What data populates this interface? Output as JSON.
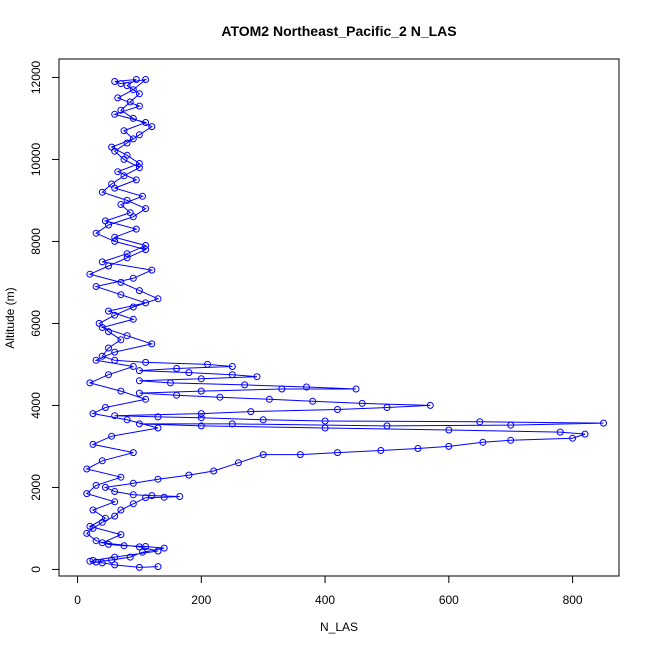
{
  "chart_data": {
    "type": "scatter",
    "title": "ATOM2 Northeast_Pacific_2 N_LAS",
    "xlabel": "N_LAS",
    "ylabel": "Altitude (m)",
    "xlim": [
      -30,
      875
    ],
    "ylim": [
      -160,
      12450
    ],
    "x_ticks": [
      0,
      200,
      400,
      600,
      800
    ],
    "y_ticks": [
      0,
      2000,
      4000,
      6000,
      8000,
      10000,
      12000
    ],
    "grid": false,
    "legend": "none",
    "marker": "open-circle",
    "connected_by_lines": true,
    "colors": {
      "series": "#0000ff",
      "axis": "#000000",
      "background": "#ffffff"
    },
    "series": [
      {
        "points": [
          [
            130,
            70
          ],
          [
            100,
            50
          ],
          [
            60,
            110
          ],
          [
            40,
            160
          ],
          [
            20,
            200
          ],
          [
            30,
            180
          ],
          [
            55,
            230
          ],
          [
            85,
            300
          ],
          [
            105,
            420
          ],
          [
            140,
            520
          ],
          [
            110,
            560
          ],
          [
            75,
            580
          ],
          [
            50,
            610
          ],
          [
            30,
            700
          ],
          [
            15,
            880
          ],
          [
            25,
            1000
          ],
          [
            40,
            1150
          ],
          [
            60,
            1300
          ],
          [
            70,
            1450
          ],
          [
            90,
            1600
          ],
          [
            110,
            1750
          ],
          [
            140,
            1760
          ],
          [
            165,
            1780
          ],
          [
            120,
            1800
          ],
          [
            90,
            1820
          ],
          [
            60,
            1900
          ],
          [
            45,
            2000
          ],
          [
            90,
            2100
          ],
          [
            130,
            2200
          ],
          [
            180,
            2300
          ],
          [
            220,
            2400
          ],
          [
            260,
            2600
          ],
          [
            300,
            2800
          ],
          [
            360,
            2800
          ],
          [
            420,
            2850
          ],
          [
            490,
            2900
          ],
          [
            550,
            2950
          ],
          [
            600,
            3000
          ],
          [
            655,
            3100
          ],
          [
            700,
            3150
          ],
          [
            800,
            3200
          ],
          [
            820,
            3300
          ],
          [
            780,
            3350
          ],
          [
            600,
            3400
          ],
          [
            400,
            3450
          ],
          [
            200,
            3500
          ],
          [
            100,
            3550
          ],
          [
            250,
            3550
          ],
          [
            500,
            3500
          ],
          [
            700,
            3520
          ],
          [
            850,
            3570
          ],
          [
            650,
            3600
          ],
          [
            400,
            3620
          ],
          [
            300,
            3650
          ],
          [
            200,
            3700
          ],
          [
            130,
            3720
          ],
          [
            60,
            3750
          ],
          [
            200,
            3800
          ],
          [
            280,
            3850
          ],
          [
            420,
            3900
          ],
          [
            500,
            3950
          ],
          [
            570,
            4000
          ],
          [
            460,
            4050
          ],
          [
            380,
            4100
          ],
          [
            310,
            4150
          ],
          [
            230,
            4200
          ],
          [
            160,
            4250
          ],
          [
            100,
            4300
          ],
          [
            200,
            4350
          ],
          [
            330,
            4400
          ],
          [
            450,
            4400
          ],
          [
            370,
            4450
          ],
          [
            270,
            4500
          ],
          [
            150,
            4550
          ],
          [
            100,
            4600
          ],
          [
            200,
            4650
          ],
          [
            290,
            4700
          ],
          [
            250,
            4750
          ],
          [
            180,
            4800
          ],
          [
            100,
            4850
          ],
          [
            160,
            4900
          ],
          [
            250,
            4950
          ],
          [
            210,
            5000
          ],
          [
            110,
            5050
          ],
          [
            60,
            5100
          ],
          [
            40,
            5200
          ],
          [
            50,
            5400
          ],
          [
            70,
            5600
          ],
          [
            50,
            5800
          ],
          [
            35,
            6000
          ],
          [
            60,
            6200
          ],
          [
            90,
            6400
          ],
          [
            130,
            6600
          ],
          [
            100,
            6800
          ],
          [
            70,
            7000
          ],
          [
            20,
            7200
          ],
          [
            50,
            7400
          ],
          [
            80,
            7600
          ],
          [
            110,
            7800
          ],
          [
            60,
            8000
          ],
          [
            30,
            8200
          ],
          [
            50,
            8400
          ],
          [
            90,
            8600
          ],
          [
            110,
            8800
          ],
          [
            80,
            9000
          ],
          [
            40,
            9200
          ],
          [
            55,
            9400
          ],
          [
            75,
            9600
          ],
          [
            100,
            9800
          ],
          [
            75,
            10000
          ],
          [
            60,
            10200
          ],
          [
            80,
            10400
          ],
          [
            100,
            10600
          ],
          [
            120,
            10800
          ],
          [
            90,
            11000
          ],
          [
            70,
            11200
          ],
          [
            85,
            11400
          ],
          [
            100,
            11600
          ],
          [
            80,
            11800
          ],
          [
            95,
            11950
          ],
          [
            60,
            11900
          ],
          [
            70,
            11850
          ],
          [
            110,
            11950
          ],
          [
            90,
            11700
          ],
          [
            65,
            11500
          ],
          [
            100,
            11300
          ],
          [
            60,
            11100
          ],
          [
            110,
            10900
          ],
          [
            75,
            10700
          ],
          [
            90,
            10500
          ],
          [
            55,
            10300
          ],
          [
            80,
            10100
          ],
          [
            100,
            9900
          ],
          [
            65,
            9700
          ],
          [
            95,
            9500
          ],
          [
            60,
            9300
          ],
          [
            105,
            9100
          ],
          [
            70,
            8900
          ],
          [
            85,
            8700
          ],
          [
            45,
            8500
          ],
          [
            95,
            8300
          ],
          [
            60,
            8100
          ],
          [
            110,
            7900
          ],
          [
            80,
            7700
          ],
          [
            40,
            7500
          ],
          [
            120,
            7300
          ],
          [
            90,
            7100
          ],
          [
            30,
            6900
          ],
          [
            70,
            6700
          ],
          [
            110,
            6500
          ],
          [
            50,
            6300
          ],
          [
            90,
            6100
          ],
          [
            40,
            5900
          ],
          [
            80,
            5700
          ],
          [
            120,
            5500
          ],
          [
            60,
            5300
          ],
          [
            30,
            5100
          ],
          [
            90,
            4950
          ],
          [
            50,
            4750
          ],
          [
            20,
            4550
          ],
          [
            70,
            4350
          ],
          [
            110,
            4150
          ],
          [
            45,
            3950
          ],
          [
            25,
            3800
          ],
          [
            80,
            3650
          ],
          [
            130,
            3450
          ],
          [
            55,
            3250
          ],
          [
            25,
            3050
          ],
          [
            90,
            2850
          ],
          [
            40,
            2650
          ],
          [
            15,
            2450
          ],
          [
            70,
            2250
          ],
          [
            30,
            2050
          ],
          [
            15,
            1850
          ],
          [
            60,
            1650
          ],
          [
            25,
            1450
          ],
          [
            45,
            1250
          ],
          [
            20,
            1050
          ],
          [
            70,
            850
          ],
          [
            40,
            650
          ],
          [
            100,
            550
          ],
          [
            130,
            450
          ],
          [
            60,
            300
          ],
          [
            25,
            220
          ]
        ]
      }
    ]
  }
}
